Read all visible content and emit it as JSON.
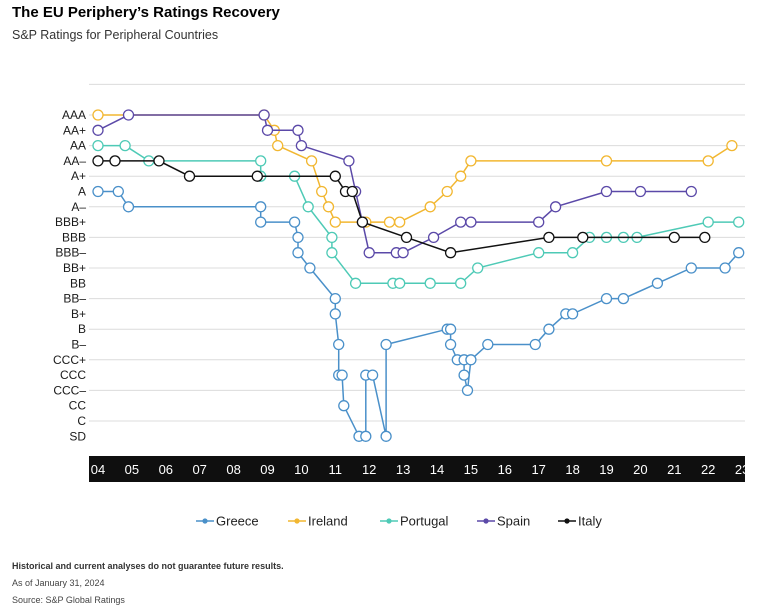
{
  "title": "The EU Periphery’s Ratings Recovery",
  "subtitle": "S&P Ratings for Peripheral Countries",
  "footnotes": {
    "disclaimer": "Historical and current analyses do not guarantee future results.",
    "asof": "As of January 31, 2024",
    "source": "Source: S&P Global Ratings"
  },
  "chart_data": {
    "type": "line",
    "x_axis": {
      "type": "year",
      "range": [
        2004,
        2023.1
      ],
      "tick_labels": [
        "04",
        "05",
        "06",
        "07",
        "08",
        "09",
        "10",
        "11",
        "12",
        "13",
        "14",
        "15",
        "16",
        "17",
        "18",
        "19",
        "20",
        "21",
        "22",
        "23"
      ]
    },
    "y_axis": {
      "type": "rating_scale",
      "categories": [
        "AAA",
        "AA+",
        "AA",
        "AA–",
        "A+",
        "A",
        "A–",
        "BBB+",
        "BBB",
        "BBB–",
        "BB+",
        "BB",
        "BB–",
        "B+",
        "B",
        "B–",
        "CCC+",
        "CCC",
        "CCC–",
        "CC",
        "C",
        "SD"
      ]
    },
    "grid": "horizontal",
    "legend_position": "bottom",
    "series": [
      {
        "name": "Greece",
        "color": "#4a90c9",
        "points": [
          [
            2004,
            "A"
          ],
          [
            2004.6,
            "A"
          ],
          [
            2004.9,
            "A–"
          ],
          [
            2008.8,
            "A–"
          ],
          [
            2008.8,
            "BBB+"
          ],
          [
            2009.8,
            "BBB+"
          ],
          [
            2009.9,
            "BBB"
          ],
          [
            2009.9,
            "BBB–"
          ],
          [
            2010.25,
            "BB+"
          ],
          [
            2011.0,
            "BB–"
          ],
          [
            2011.0,
            "B+"
          ],
          [
            2011.1,
            "B–"
          ],
          [
            2011.1,
            "CCC"
          ],
          [
            2011.2,
            "CCC"
          ],
          [
            2011.25,
            "CC"
          ],
          [
            2011.7,
            "SD"
          ],
          [
            2011.9,
            "SD"
          ],
          [
            2011.9,
            "CCC"
          ],
          [
            2012.1,
            "CCC"
          ],
          [
            2012.5,
            "SD"
          ],
          [
            2012.5,
            "B–"
          ],
          [
            2014.3,
            "B"
          ],
          [
            2014.4,
            "B"
          ],
          [
            2014.4,
            "B–"
          ],
          [
            2014.6,
            "CCC+"
          ],
          [
            2014.8,
            "CCC+"
          ],
          [
            2014.8,
            "CCC"
          ],
          [
            2014.9,
            "CCC–"
          ],
          [
            2015.0,
            "CCC+"
          ],
          [
            2015.5,
            "B–"
          ],
          [
            2016.9,
            "B–"
          ],
          [
            2017.3,
            "B"
          ],
          [
            2017.8,
            "B+"
          ],
          [
            2018.0,
            "B+"
          ],
          [
            2019.0,
            "BB–"
          ],
          [
            2019.5,
            "BB–"
          ],
          [
            2020.5,
            "BB"
          ],
          [
            2021.5,
            "BB+"
          ],
          [
            2022.5,
            "BB+"
          ],
          [
            2022.9,
            "BBB–"
          ]
        ]
      },
      {
        "name": "Ireland",
        "color": "#f2b731",
        "points": [
          [
            2004,
            "AAA"
          ],
          [
            2008.9,
            "AAA"
          ],
          [
            2009.2,
            "AA+"
          ],
          [
            2009.3,
            "AA"
          ],
          [
            2010.3,
            "AA–"
          ],
          [
            2010.6,
            "A"
          ],
          [
            2010.8,
            "A–"
          ],
          [
            2011.0,
            "BBB+"
          ],
          [
            2011.9,
            "BBB+"
          ],
          [
            2012.6,
            "BBB+"
          ],
          [
            2012.9,
            "BBB+"
          ],
          [
            2013.8,
            "A–"
          ],
          [
            2014.3,
            "A"
          ],
          [
            2014.7,
            "A+"
          ],
          [
            2015.0,
            "AA–"
          ],
          [
            2019.0,
            "AA–"
          ],
          [
            2022.0,
            "AA–"
          ],
          [
            2022.7,
            "AA"
          ]
        ]
      },
      {
        "name": "Portugal",
        "color": "#4ecab6",
        "points": [
          [
            2004,
            "AA"
          ],
          [
            2004.8,
            "AA"
          ],
          [
            2005.5,
            "AA–"
          ],
          [
            2008.8,
            "AA–"
          ],
          [
            2008.8,
            "A+"
          ],
          [
            2009.8,
            "A+"
          ],
          [
            2010.2,
            "A–"
          ],
          [
            2010.9,
            "BBB"
          ],
          [
            2010.9,
            "BBB–"
          ],
          [
            2011.6,
            "BB"
          ],
          [
            2012.7,
            "BB"
          ],
          [
            2012.9,
            "BB"
          ],
          [
            2013.8,
            "BB"
          ],
          [
            2014.7,
            "BB"
          ],
          [
            2015.2,
            "BB+"
          ],
          [
            2017.0,
            "BBB–"
          ],
          [
            2018.0,
            "BBB–"
          ],
          [
            2018.5,
            "BBB"
          ],
          [
            2019.0,
            "BBB"
          ],
          [
            2019.5,
            "BBB"
          ],
          [
            2019.9,
            "BBB"
          ],
          [
            2022.0,
            "BBB+"
          ],
          [
            2022.9,
            "BBB+"
          ]
        ]
      },
      {
        "name": "Spain",
        "color": "#5b49a8",
        "points": [
          [
            2004,
            "AA+"
          ],
          [
            2004.9,
            "AAA"
          ],
          [
            2008.9,
            "AAA"
          ],
          [
            2009.0,
            "AA+"
          ],
          [
            2009.9,
            "AA+"
          ],
          [
            2010.0,
            "AA"
          ],
          [
            2011.4,
            "AA–"
          ],
          [
            2011.6,
            "A"
          ],
          [
            2011.8,
            "BBB+"
          ],
          [
            2012.0,
            "BBB–"
          ],
          [
            2012.8,
            "BBB–"
          ],
          [
            2013.0,
            "BBB–"
          ],
          [
            2013.9,
            "BBB"
          ],
          [
            2014.7,
            "BBB+"
          ],
          [
            2015.0,
            "BBB+"
          ],
          [
            2017.0,
            "BBB+"
          ],
          [
            2017.5,
            "A–"
          ],
          [
            2019.0,
            "A"
          ],
          [
            2020.0,
            "A"
          ],
          [
            2021.5,
            "A"
          ]
        ]
      },
      {
        "name": "Italy",
        "color": "#111111",
        "points": [
          [
            2004,
            "AA–"
          ],
          [
            2004.5,
            "AA–"
          ],
          [
            2005.8,
            "AA–"
          ],
          [
            2006.7,
            "A+"
          ],
          [
            2008.7,
            "A+"
          ],
          [
            2011.0,
            "A+"
          ],
          [
            2011.3,
            "A"
          ],
          [
            2011.5,
            "A"
          ],
          [
            2011.8,
            "BBB+"
          ],
          [
            2013.1,
            "BBB"
          ],
          [
            2014.4,
            "BBB–"
          ],
          [
            2017.3,
            "BBB"
          ],
          [
            2018.3,
            "BBB"
          ],
          [
            2021.0,
            "BBB"
          ],
          [
            2021.9,
            "BBB"
          ]
        ]
      }
    ]
  }
}
